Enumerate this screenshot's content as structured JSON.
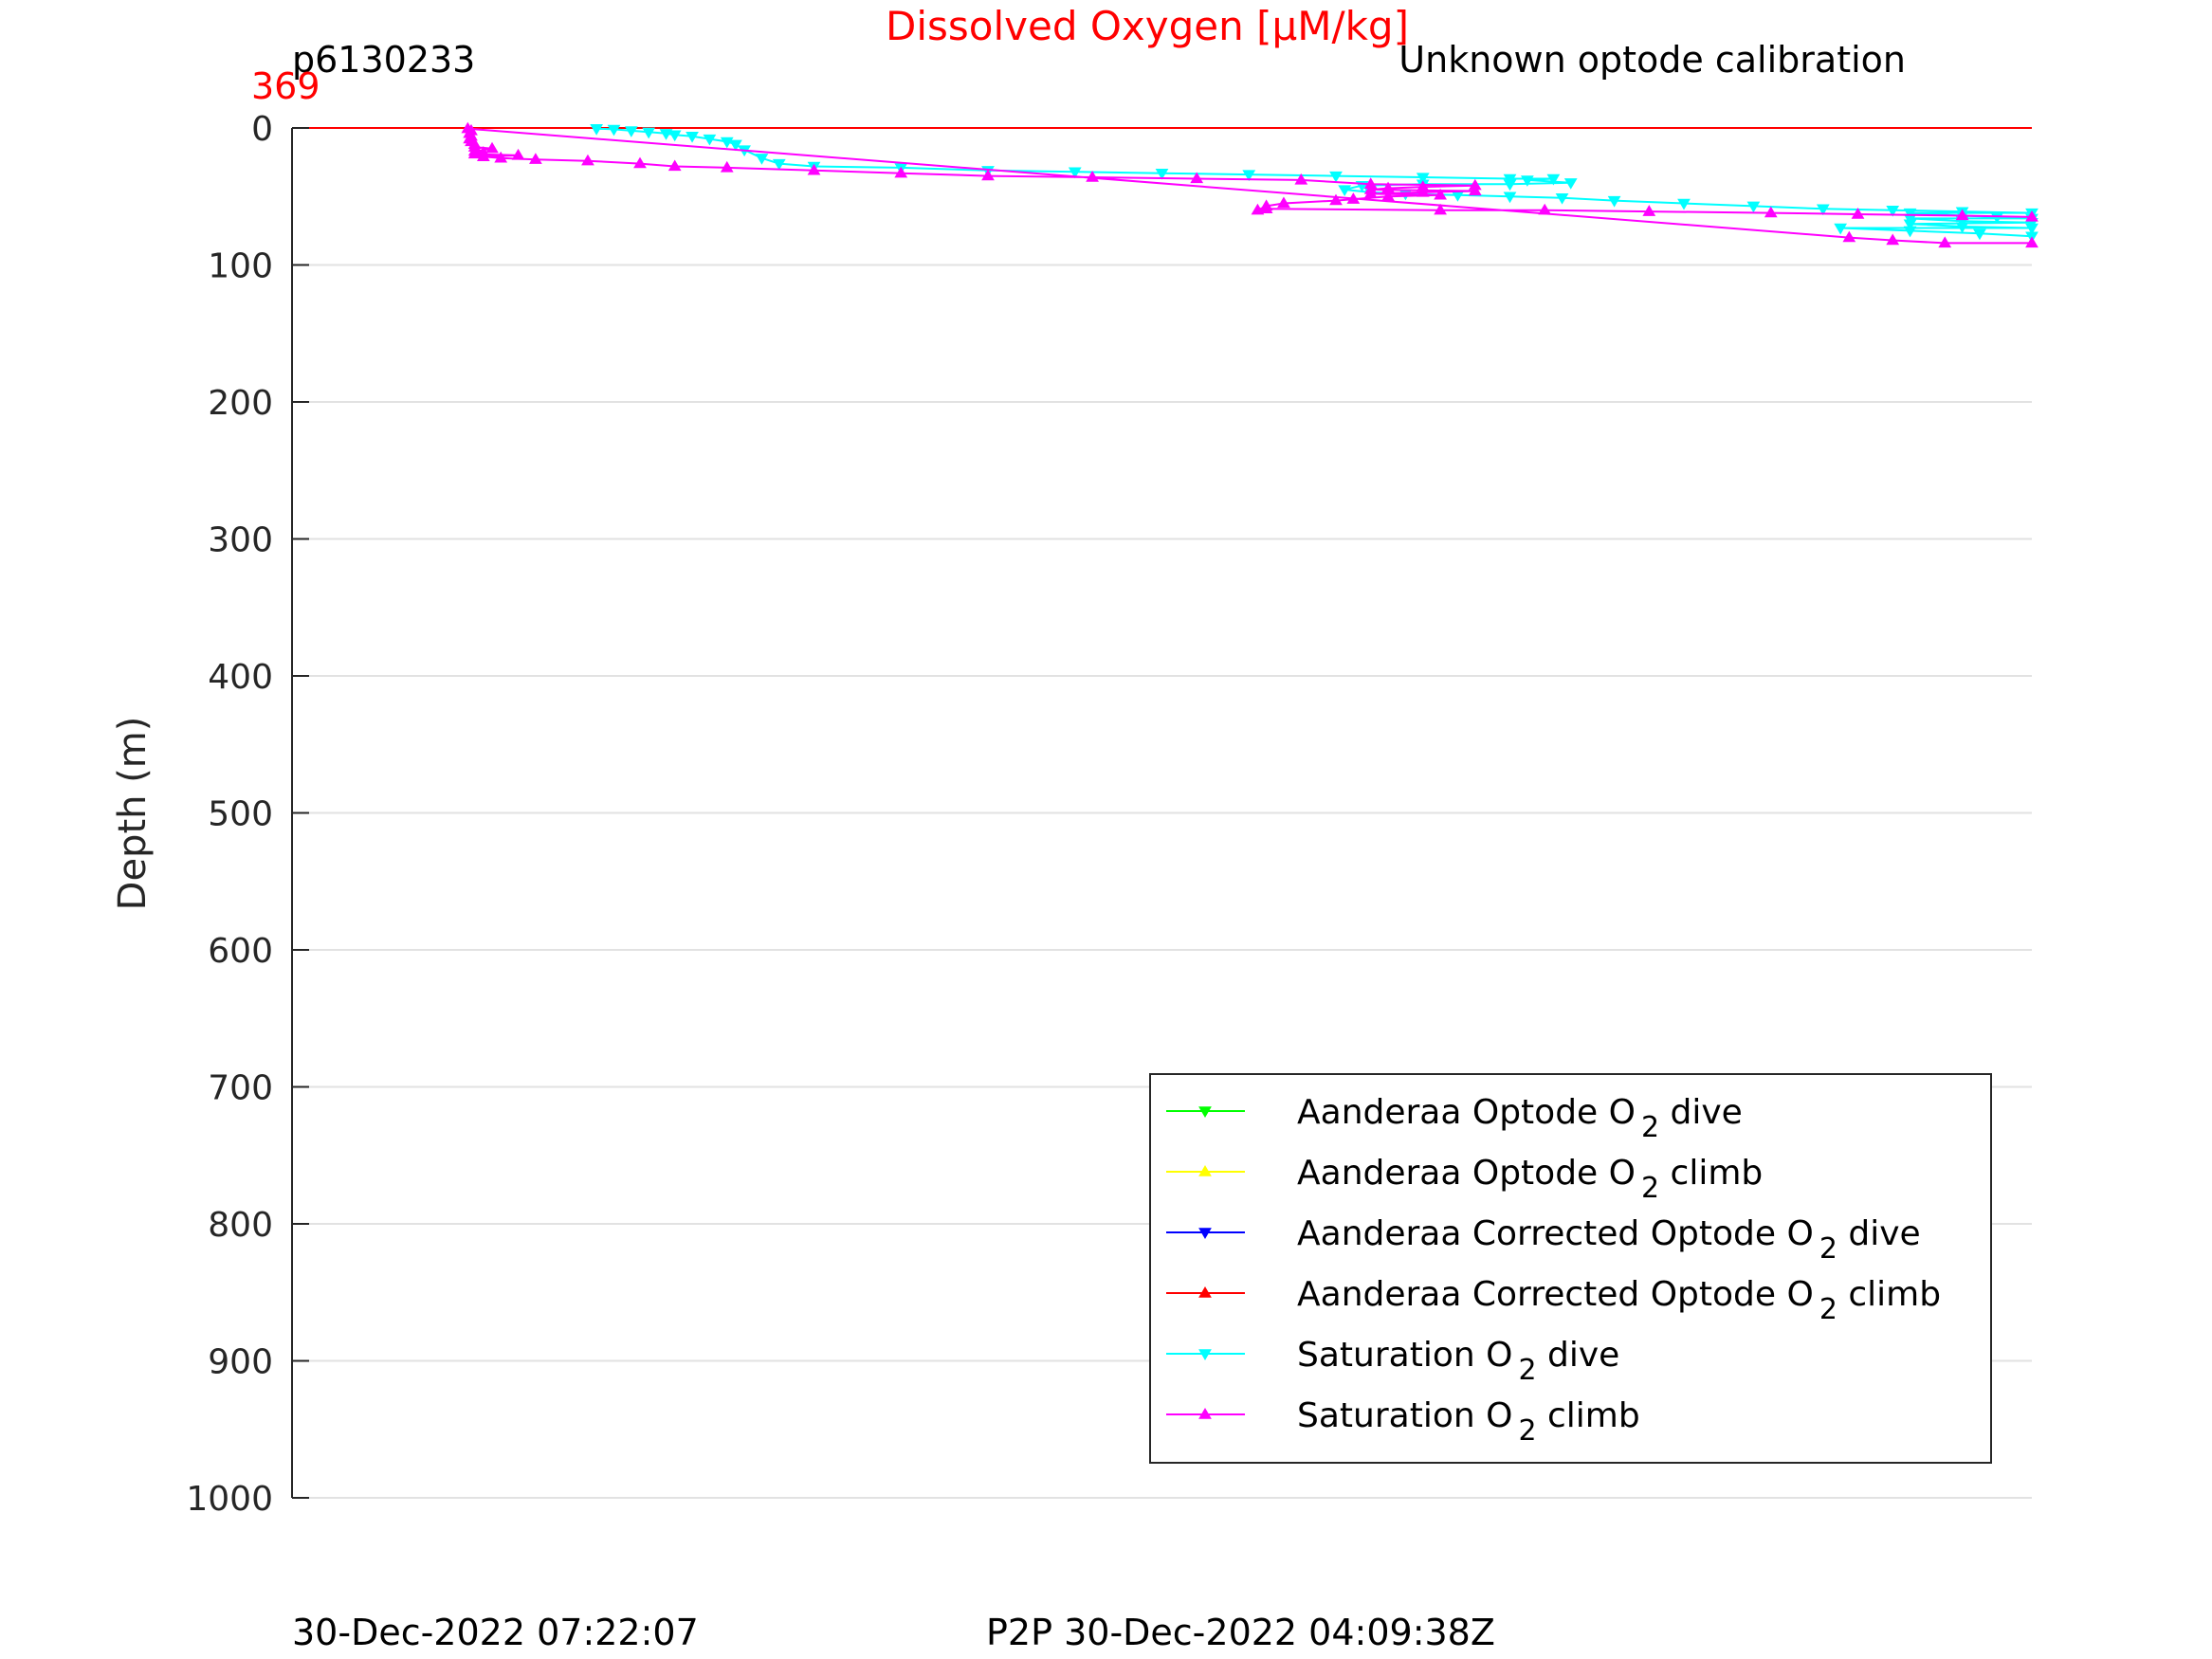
{
  "chart_data": {
    "type": "line",
    "title": "Dissolved Oxygen [μM/kg]",
    "title_color": "#ff0000",
    "top_left_label": "p6130233",
    "top_right_label": "Unknown optode calibration",
    "x_top_value": "369",
    "x_top_value_color": "#ff0000",
    "ylabel": "Depth (m)",
    "y_reversed": true,
    "ylim": [
      0,
      1000
    ],
    "y_ticks": [
      0,
      100,
      200,
      300,
      400,
      500,
      600,
      700,
      800,
      900,
      1000
    ],
    "y_tick_labels": [
      "0",
      "100",
      "200",
      "300",
      "400",
      "500",
      "600",
      "700",
      "800",
      "900",
      "1000"
    ],
    "xlim": [
      0,
      100
    ],
    "grid": true,
    "legend_position": "bottom-right",
    "footer_left": "30-Dec-2022 07:22:07",
    "footer_right": "P2P 30-Dec-2022 04:09:38Z",
    "series": [
      {
        "name": "Aanderaa Optode O",
        "name_sub": "2",
        "name_suffix": " dive",
        "color": "#00ff00",
        "marker": "down",
        "points": []
      },
      {
        "name": "Aanderaa Optode O",
        "name_sub": "2",
        "name_suffix": " climb",
        "color": "#ffff00",
        "marker": "up",
        "points": []
      },
      {
        "name": "Aanderaa Corrected Optode O",
        "name_sub": "2",
        "name_suffix": " dive",
        "color": "#0000ff",
        "marker": "down",
        "points": []
      },
      {
        "name": "Aanderaa Corrected Optode O",
        "name_sub": "2",
        "name_suffix": " climb",
        "color": "#ff0000",
        "marker": "up",
        "points": [
          [
            0,
            0
          ],
          [
            100,
            0
          ]
        ]
      },
      {
        "name": "Saturation O",
        "name_sub": "2",
        "name_suffix": " dive",
        "color": "#00ffff",
        "marker": "down",
        "points": [
          [
            17.5,
            0.5
          ],
          [
            18.5,
            1
          ],
          [
            19.5,
            2
          ],
          [
            20.5,
            3
          ],
          [
            21.5,
            4
          ],
          [
            22,
            5
          ],
          [
            23,
            6
          ],
          [
            24,
            8
          ],
          [
            25,
            10
          ],
          [
            25.5,
            12
          ],
          [
            26,
            16
          ],
          [
            27,
            22
          ],
          [
            28,
            26
          ],
          [
            30,
            28
          ],
          [
            35,
            29
          ],
          [
            40,
            31
          ],
          [
            45,
            32
          ],
          [
            50,
            33
          ],
          [
            55,
            34
          ],
          [
            60,
            35
          ],
          [
            65,
            36
          ],
          [
            70,
            37
          ],
          [
            72.5,
            37
          ],
          [
            71,
            38
          ],
          [
            73.5,
            40
          ],
          [
            70,
            41
          ],
          [
            65,
            41
          ],
          [
            61.5,
            42
          ],
          [
            60.5,
            45
          ],
          [
            62,
            47
          ],
          [
            64,
            48
          ],
          [
            67,
            49
          ],
          [
            70,
            50
          ],
          [
            73,
            51
          ],
          [
            76,
            53
          ],
          [
            80,
            55
          ],
          [
            84,
            57
          ],
          [
            88,
            59
          ],
          [
            92,
            60
          ],
          [
            96,
            61
          ],
          [
            100,
            62
          ],
          [
            93,
            62
          ],
          [
            96,
            64
          ],
          [
            98,
            65
          ],
          [
            100,
            66
          ],
          [
            93,
            66
          ],
          [
            96,
            68
          ],
          [
            100,
            69
          ],
          [
            93,
            70
          ],
          [
            96,
            72
          ],
          [
            100,
            73
          ],
          [
            89,
            73
          ],
          [
            93,
            75
          ],
          [
            97,
            77
          ],
          [
            100,
            79
          ]
        ]
      },
      {
        "name": "Saturation O",
        "name_sub": "2",
        "name_suffix": " climb",
        "color": "#ff00ff",
        "marker": "up",
        "points": [
          [
            100,
            65
          ],
          [
            96,
            64
          ],
          [
            90,
            63
          ],
          [
            85,
            62
          ],
          [
            78,
            61
          ],
          [
            72,
            60
          ],
          [
            66,
            60
          ],
          [
            56,
            59
          ],
          [
            55.5,
            60
          ],
          [
            56,
            57
          ],
          [
            57,
            55
          ],
          [
            60,
            53
          ],
          [
            61,
            52
          ],
          [
            63,
            50
          ],
          [
            66,
            49
          ],
          [
            62,
            48
          ],
          [
            65,
            47
          ],
          [
            68,
            46
          ],
          [
            62,
            45
          ],
          [
            63,
            44
          ],
          [
            65,
            43
          ],
          [
            68,
            42
          ],
          [
            62,
            41
          ],
          [
            58,
            38
          ],
          [
            52,
            37
          ],
          [
            46,
            36
          ],
          [
            40,
            35
          ],
          [
            35,
            33
          ],
          [
            30,
            31
          ],
          [
            25,
            29
          ],
          [
            22,
            28
          ],
          [
            20,
            26
          ],
          [
            17,
            24
          ],
          [
            14,
            23
          ],
          [
            12,
            22
          ],
          [
            11,
            21
          ],
          [
            13,
            20
          ],
          [
            10.5,
            19
          ],
          [
            11,
            18
          ],
          [
            10.5,
            17
          ],
          [
            11.5,
            15
          ],
          [
            10.5,
            14
          ],
          [
            10.5,
            12
          ],
          [
            10.3,
            10
          ],
          [
            10.2,
            8
          ],
          [
            10.3,
            6
          ],
          [
            10.2,
            4
          ],
          [
            10.3,
            2
          ],
          [
            10.1,
            0.5
          ],
          [
            89.5,
            80
          ],
          [
            92,
            82
          ],
          [
            95,
            84
          ],
          [
            100,
            84
          ]
        ]
      }
    ]
  }
}
